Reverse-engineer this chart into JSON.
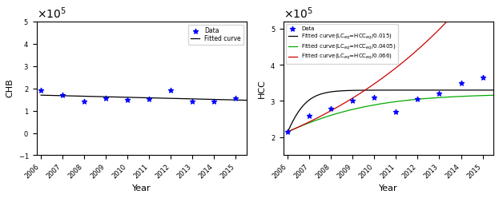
{
  "chb_years": [
    2006,
    2007,
    2008,
    2009,
    2010,
    2011,
    2012,
    2013,
    2014,
    2015
  ],
  "chb_data": [
    190000,
    170000,
    140000,
    155000,
    148000,
    152000,
    192000,
    143000,
    140000,
    155000
  ],
  "chb_ylim": [
    -100000,
    500000
  ],
  "chb_ylabel": "CHB",
  "chb_xlabel": "Year",
  "hcc_years": [
    2006,
    2007,
    2008,
    2009,
    2010,
    2011,
    2012,
    2013,
    2014,
    2015
  ],
  "hcc_data": [
    215000,
    260000,
    280000,
    300000,
    310000,
    270000,
    305000,
    320000,
    350000,
    365000
  ],
  "hcc_ylim": [
    150000,
    520000
  ],
  "hcc_ylabel": "HCC",
  "hcc_xlabel": "Year",
  "legend1_labels": [
    "Data",
    "Fitted curve"
  ],
  "legend2_labels": [
    "Data",
    "Fitted curve(LC$_{eq}$=HCC$_{eq}$/0.015)",
    "Fitted curve(LC$_{eq}$=HCC$_{eq}$/0.0405)",
    "Fitted curve(LC$_{eq}$=HCC$_{eq}$/0.066)"
  ],
  "dot_color": "#0000FF",
  "fit_color_black": "#000000",
  "fit_color_green": "#00AA00",
  "fit_color_red": "#CC0000",
  "black_r": 1.8,
  "black_K": 330000,
  "black_N0": 215000,
  "green_r": 0.38,
  "green_K": 320000,
  "green_N0": 215000,
  "red_r": 0.12,
  "red_N0": 215000
}
